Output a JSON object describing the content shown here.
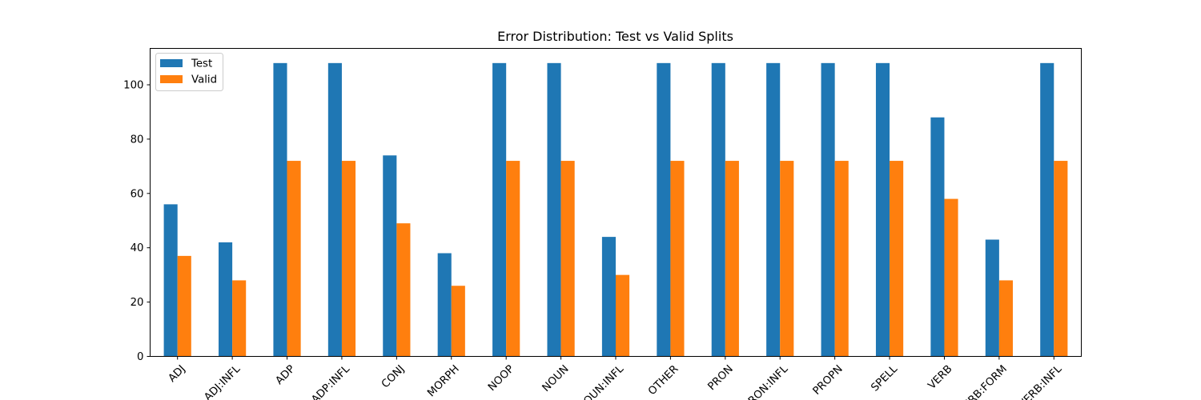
{
  "chart_data": {
    "type": "bar",
    "title": "Error Distribution: Test vs Valid Splits",
    "xlabel": "",
    "ylabel": "",
    "categories": [
      "ADJ",
      "ADJ:INFL",
      "ADP",
      "ADP:INFL",
      "CONJ",
      "MORPH",
      "NOOP",
      "NOUN",
      "NOUN:INFL",
      "OTHER",
      "PRON",
      "PRON:INFL",
      "PROPN",
      "SPELL",
      "VERB",
      "VERB:FORM",
      "VERB:INFL"
    ],
    "series": [
      {
        "name": "Test",
        "color": "#1f77b4",
        "values": [
          56,
          42,
          108,
          108,
          74,
          38,
          108,
          108,
          44,
          108,
          108,
          108,
          108,
          108,
          88,
          43,
          108
        ]
      },
      {
        "name": "Valid",
        "color": "#ff7f0e",
        "values": [
          37,
          28,
          72,
          72,
          49,
          26,
          72,
          72,
          30,
          72,
          72,
          72,
          72,
          72,
          58,
          28,
          72
        ]
      }
    ],
    "ylim": [
      0,
      113.4
    ],
    "yticks": [
      0,
      20,
      40,
      60,
      80,
      100
    ],
    "grid": false,
    "legend_position": "top-left"
  }
}
